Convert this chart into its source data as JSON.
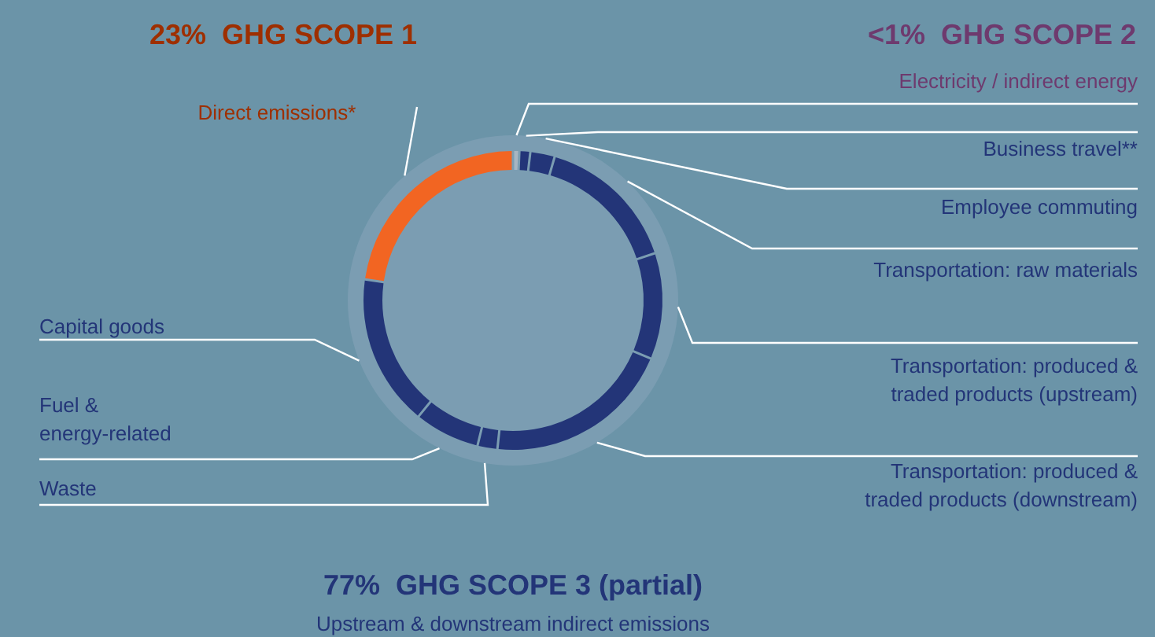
{
  "chart_data": {
    "type": "donut",
    "categories": [
      "Electricity / indirect energy",
      "Business travel**",
      "Employee commuting",
      "Transportation: raw materials",
      "Transportation: produced & traded products (upstream)",
      "Transportation: produced & traded products (downstream)",
      "Waste",
      "Fuel & energy-related",
      "Capital goods",
      "Direct emissions*"
    ],
    "values": [
      0.5,
      1,
      2.5,
      15.5,
      11.5,
      20.5,
      2,
      7,
      16.5,
      23
    ],
    "colors": [
      "#a7b6c2",
      "#233578",
      "#233578",
      "#233578",
      "#233578",
      "#233578",
      "#233578",
      "#233578",
      "#233578",
      "#f26522"
    ],
    "annotations": [
      "23%  GHG SCOPE 1",
      "<1%  GHG SCOPE 2",
      "77%  GHG SCOPE 3 (partial)",
      "Upstream & downstream indirect emissions"
    ]
  }
}
